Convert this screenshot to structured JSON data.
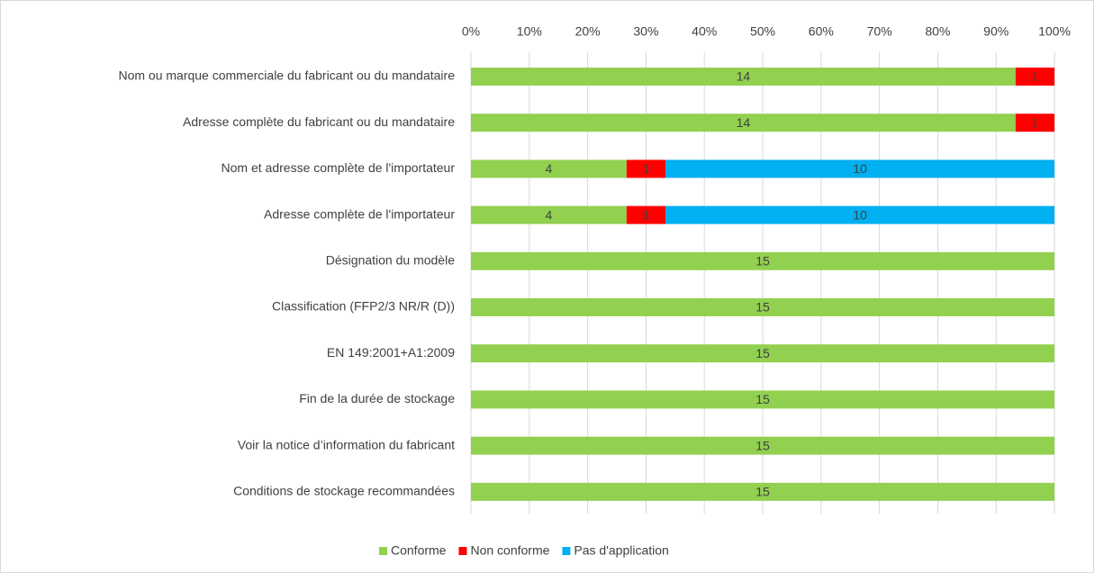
{
  "chart_data": {
    "type": "bar",
    "orientation": "horizontal",
    "stacked": "percent",
    "categories": [
      "Nom ou marque commerciale du fabricant ou du mandataire",
      "Adresse complète du fabricant ou du mandataire",
      "Nom et adresse complète de l'importateur",
      "Adresse complète de l'importateur",
      "Désignation du modèle",
      "Classification (FFP2/3 NR/R (D))",
      "EN 149:2001+A1:2009",
      "Fin de la durée de stockage",
      "Voir la notice d’information du fabricant",
      "Conditions de stockage recommandées"
    ],
    "series": [
      {
        "name": "Conforme",
        "color": "#92d050",
        "values": [
          14,
          14,
          4,
          4,
          15,
          15,
          15,
          15,
          15,
          15
        ]
      },
      {
        "name": "Non conforme",
        "color": "#ff0000",
        "values": [
          1,
          1,
          1,
          1,
          0,
          0,
          0,
          0,
          0,
          0
        ]
      },
      {
        "name": "Pas d'application",
        "color": "#00b0f0",
        "values": [
          0,
          0,
          10,
          10,
          0,
          0,
          0,
          0,
          0,
          0
        ]
      }
    ],
    "xlim": [
      0,
      100
    ],
    "xticks": [
      {
        "value": 0,
        "label": "0%"
      },
      {
        "value": 10,
        "label": "10%"
      },
      {
        "value": 20,
        "label": "20%"
      },
      {
        "value": 30,
        "label": "30%"
      },
      {
        "value": 40,
        "label": "40%"
      },
      {
        "value": 50,
        "label": "50%"
      },
      {
        "value": 60,
        "label": "60%"
      },
      {
        "value": 70,
        "label": "70%"
      },
      {
        "value": 80,
        "label": "80%"
      },
      {
        "value": 90,
        "label": "90%"
      },
      {
        "value": 100,
        "label": "100%"
      }
    ],
    "grid": true,
    "legend": "bottom"
  }
}
